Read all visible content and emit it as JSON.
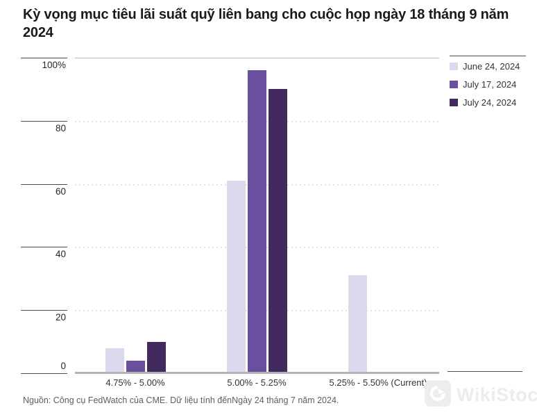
{
  "chart_data": {
    "type": "bar",
    "title": "Kỳ vọng mục tiêu lãi suất quỹ liên bang cho cuộc họp ngày 18 tháng 9 năm 2024",
    "categories": [
      "4.75% - 5.00%",
      "5.00% - 5.25%",
      "5.25% - 5.50% (Current)"
    ],
    "series": [
      {
        "name": "June 24, 2024",
        "color": "#ded8ec",
        "values": [
          8,
          61,
          31
        ]
      },
      {
        "name": "July 17, 2024",
        "color": "#6a4f9e",
        "values": [
          4,
          96,
          0
        ]
      },
      {
        "name": "July 24, 2024",
        "color": "#42295e",
        "values": [
          10,
          90,
          0
        ]
      }
    ],
    "xlabel": "",
    "ylabel": "",
    "values_unit": "%",
    "ylim": [
      0,
      100
    ],
    "yticks": [
      100,
      80,
      60,
      40,
      20,
      0
    ],
    "ytick_labels": [
      "100%",
      "80",
      "60",
      "40",
      "20",
      "0"
    ],
    "legend_position": "top-right",
    "grid": "horizontal-dotted"
  },
  "source_note": "Nguồn: Công cụ FedWatch của CME. Dữ liệu tính đếnNgày 24 tháng 7 năm 2024.",
  "watermark": {
    "text": "WikiStock",
    "icon": "wikistock-bird-logo"
  },
  "colors": {
    "title_text": "#1a1a1a",
    "axis_text": "#333333",
    "tick_line": "#4a4a4a",
    "gridline_dotted": "#e3e3e3",
    "gridline_top": "#b9b9b9",
    "baseline": "#b3b3b3",
    "source_text": "#5e5e5e",
    "watermark_gray": "#ececec",
    "series_light_purple": "#ded8ec",
    "series_medium_purple": "#6a4f9e",
    "series_dark_purple": "#42295e"
  }
}
